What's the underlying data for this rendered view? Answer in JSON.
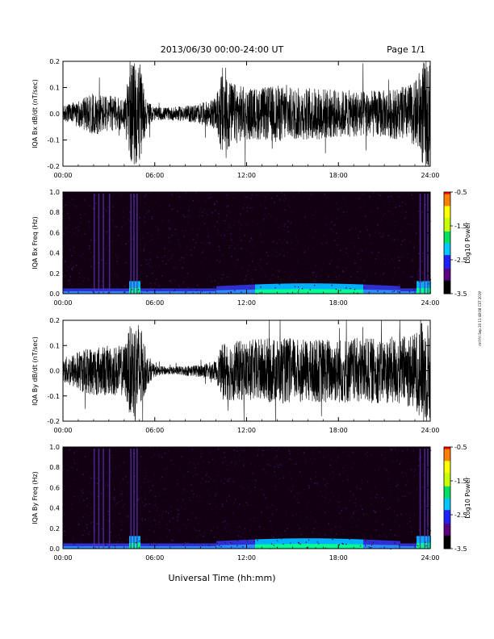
{
  "header": {
    "date_range": "2013/06/30   00:00-24:00 UT",
    "page": "Page 1/1"
  },
  "footer": {
    "xlabel": "Universal Time (hh:mm)"
  },
  "side_note": "rmf Fri Sep 20 11:48:08 CST 2019",
  "colors": {
    "background": "#ffffff",
    "trace": "#000000",
    "spectrogram_floor": "#120012",
    "colormap": [
      "#000000",
      "#5a0080",
      "#2020ff",
      "#00c8ff",
      "#00e060",
      "#c8ff00",
      "#ffff00",
      "#ff8000",
      "#ff0000"
    ]
  },
  "chart_data": [
    {
      "type": "line",
      "title": "",
      "ylabel": "IQA Bx dB/dt (nT/sec)",
      "xlabel": "",
      "x_ticks": [
        "00:00",
        "06:00",
        "12:00",
        "18:00",
        "24:00"
      ],
      "y_ticks": [
        "0.2",
        "0.1",
        "0.0",
        "-0.1",
        "-0.2"
      ],
      "xlim_hours": [
        0,
        24
      ],
      "ylim": [
        -0.2,
        0.2
      ],
      "envelope": {
        "x_hours": [
          0,
          1,
          2,
          3,
          4,
          4.5,
          5,
          5.5,
          6,
          7,
          8,
          9,
          10,
          10.5,
          11,
          12,
          13,
          14,
          15,
          16,
          17,
          18,
          19,
          20,
          21,
          22,
          23,
          23.5,
          24
        ],
        "amplitude": [
          0.03,
          0.05,
          0.08,
          0.07,
          0.06,
          0.2,
          0.2,
          0.05,
          0.025,
          0.025,
          0.03,
          0.04,
          0.06,
          0.2,
          0.12,
          0.1,
          0.1,
          0.11,
          0.1,
          0.1,
          0.1,
          0.09,
          0.09,
          0.09,
          0.09,
          0.1,
          0.12,
          0.2,
          0.2
        ]
      }
    },
    {
      "type": "heatmap",
      "title": "",
      "ylabel": "IQA Bx Freq (Hz)",
      "xlabel": "",
      "x_ticks": [
        "00:00",
        "06:00",
        "12:00",
        "18:00",
        "24:00"
      ],
      "y_ticks": [
        "1.0",
        "0.8",
        "0.6",
        "0.4",
        "0.2",
        "0.0"
      ],
      "xlim_hours": [
        0,
        24
      ],
      "ylim": [
        0,
        1.0
      ],
      "colorbar": {
        "label": "Log10 Power",
        "ticks": [
          "-0.5",
          "-1.5",
          "-2.5",
          "-3.5"
        ],
        "range": [
          -3.5,
          -0.5
        ]
      },
      "burst_hours": [
        2.0,
        2.3,
        2.6,
        3.0,
        4.4,
        4.6,
        4.8,
        23.3,
        23.6,
        23.8
      ]
    },
    {
      "type": "line",
      "title": "",
      "ylabel": "IQA By dB/dt (nT/sec)",
      "xlabel": "",
      "x_ticks": [
        "00:00",
        "06:00",
        "12:00",
        "18:00",
        "24:00"
      ],
      "y_ticks": [
        "0.2",
        "0.1",
        "0.0",
        "-0.1",
        "-0.2"
      ],
      "xlim_hours": [
        0,
        24
      ],
      "ylim": [
        -0.2,
        0.2
      ],
      "envelope": {
        "x_hours": [
          0,
          1,
          2,
          3,
          4,
          4.5,
          5,
          5.5,
          6,
          7,
          8,
          9,
          10,
          10.5,
          11,
          12,
          13,
          14,
          15,
          16,
          17,
          18,
          19,
          20,
          21,
          22,
          23,
          23.5,
          24
        ],
        "amplitude": [
          0.05,
          0.08,
          0.1,
          0.1,
          0.1,
          0.2,
          0.2,
          0.06,
          0.02,
          0.015,
          0.02,
          0.025,
          0.04,
          0.12,
          0.12,
          0.12,
          0.13,
          0.13,
          0.13,
          0.12,
          0.13,
          0.13,
          0.13,
          0.13,
          0.13,
          0.14,
          0.15,
          0.2,
          0.2
        ]
      }
    },
    {
      "type": "heatmap",
      "title": "",
      "ylabel": "IQA By Freq (Hz)",
      "xlabel": "",
      "x_ticks": [
        "00:00",
        "06:00",
        "12:00",
        "18:00",
        "24:00"
      ],
      "y_ticks": [
        "1.0",
        "0.8",
        "0.6",
        "0.4",
        "0.2",
        "0.0"
      ],
      "xlim_hours": [
        0,
        24
      ],
      "ylim": [
        0,
        1.0
      ],
      "colorbar": {
        "label": "Log10 Power",
        "ticks": [
          "-0.5",
          "-1.5",
          "-2.5",
          "-3.5"
        ],
        "range": [
          -3.5,
          -0.5
        ]
      },
      "burst_hours": [
        2.0,
        2.3,
        2.6,
        3.0,
        4.4,
        4.6,
        4.8,
        23.3,
        23.6,
        23.8
      ]
    }
  ]
}
